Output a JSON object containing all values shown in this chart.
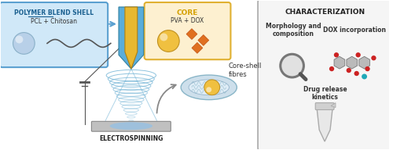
{
  "bg_color": "#ffffff",
  "shell_box_color": "#d0e8f8",
  "shell_box_edge": "#5aa0d0",
  "shell_title": "POLYMER BLEND SHELL",
  "shell_title_color": "#1a6090",
  "shell_sub": "PCL + Chitosan",
  "core_box_color": "#fdf0d0",
  "core_box_edge": "#e0b030",
  "core_title": "CORE",
  "core_title_color": "#d4a000",
  "core_sub": "PVA + DOX",
  "char_box_color": "#f5f5f5",
  "char_box_edge": "#aaaaaa",
  "char_title": "CHARACTERIZATION",
  "char_label1": "Morphology and\ncomposition",
  "char_label2": "DOX incorporation",
  "char_label3": "Drug release\nkinetics",
  "electro_label": "ELECTROSPINNING",
  "coreshell_label": "Core-shell\nfibres",
  "needle_blue": "#5aaddb",
  "needle_gold": "#e8b830",
  "fig_width": 5.0,
  "fig_height": 1.92
}
